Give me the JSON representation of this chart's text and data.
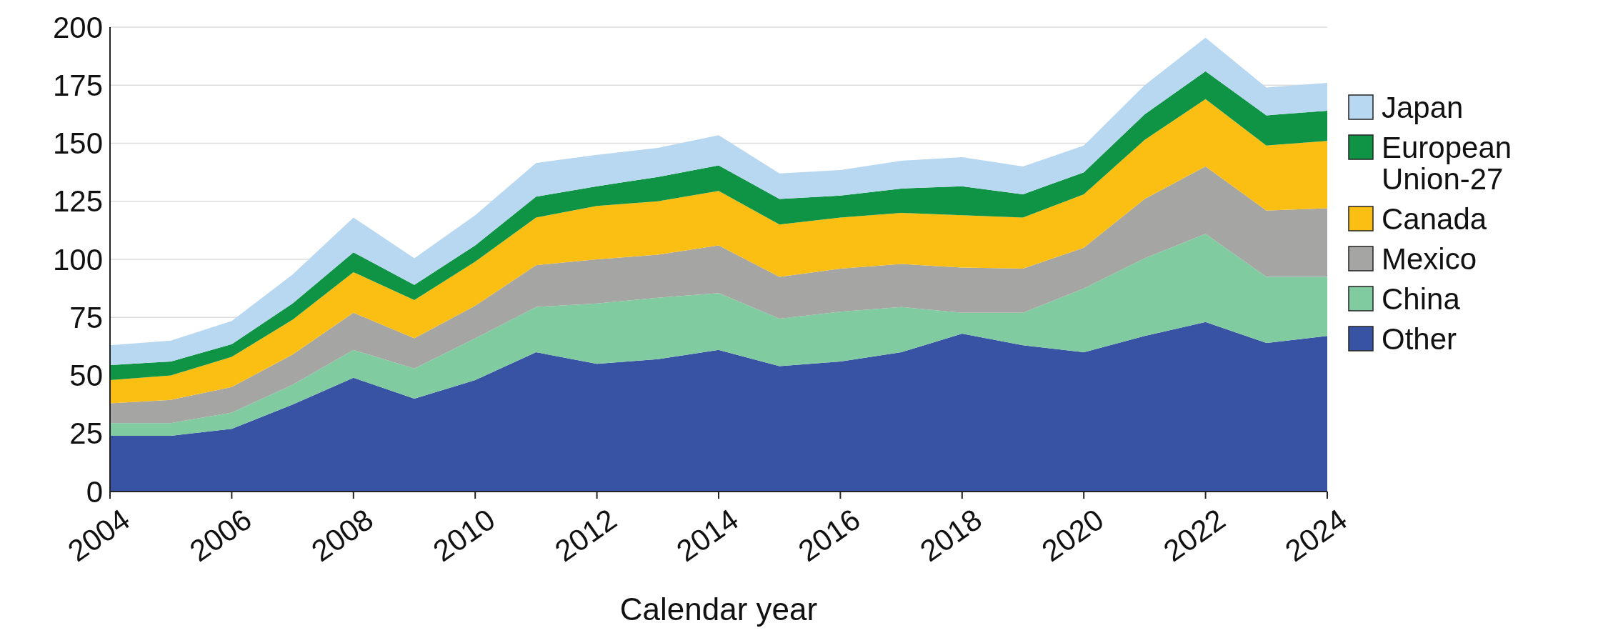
{
  "chart_data": {
    "type": "area",
    "stacked": true,
    "xlabel": "Calendar year",
    "x": [
      2004,
      2005,
      2006,
      2007,
      2008,
      2009,
      2010,
      2011,
      2012,
      2013,
      2014,
      2015,
      2016,
      2017,
      2018,
      2019,
      2020,
      2021,
      2022,
      2023,
      2024
    ],
    "xlim": [
      2004,
      2024
    ],
    "xticks": [
      2004,
      2006,
      2008,
      2010,
      2012,
      2014,
      2016,
      2018,
      2020,
      2022,
      2024
    ],
    "ylim": [
      0,
      200
    ],
    "yticks": [
      0,
      25,
      50,
      75,
      100,
      125,
      150,
      175,
      200
    ],
    "grid": "y",
    "legend": "right",
    "series": [
      {
        "name": "Other",
        "color": "#3953a4",
        "values": [
          24,
          24,
          27,
          37.5,
          49,
          40,
          48,
          60,
          55,
          57,
          61,
          54,
          56,
          60,
          68,
          63,
          60,
          67,
          73,
          64,
          67
        ]
      },
      {
        "name": "China",
        "color": "#80cba0",
        "values": [
          5.5,
          5.5,
          7,
          8.5,
          12,
          13,
          18,
          19.5,
          26,
          26.5,
          24.5,
          20.5,
          21.5,
          19.5,
          9,
          14,
          27.5,
          33.5,
          38,
          28.5,
          25.5
        ]
      },
      {
        "name": "Mexico",
        "color": "#a5a5a3",
        "values": [
          8.5,
          10,
          11,
          13,
          16,
          13,
          14,
          18,
          19,
          18.5,
          20.5,
          18,
          18.5,
          18.5,
          19.5,
          19,
          17.5,
          25.5,
          29,
          28.5,
          29.5
        ]
      },
      {
        "name": "Canada",
        "color": "#fbbf14",
        "values": [
          10,
          10.5,
          13,
          15,
          17.5,
          16.5,
          19,
          20.5,
          23,
          23,
          23.5,
          22.5,
          22,
          22,
          22.5,
          22,
          23,
          25.5,
          29,
          28,
          29
        ]
      },
      {
        "name": "European Union-27",
        "color": "#0e9444",
        "values": [
          6.5,
          6,
          5.5,
          7,
          8.5,
          6.5,
          7,
          9,
          8.5,
          10.5,
          11,
          11,
          9.5,
          10.5,
          12.5,
          10,
          9.5,
          11,
          12,
          13,
          13
        ]
      },
      {
        "name": "Japan",
        "color": "#b8d8f2",
        "values": [
          8.5,
          9,
          10,
          12.5,
          15,
          11.5,
          13,
          14.5,
          13.5,
          12.5,
          13,
          11,
          11,
          12,
          12.5,
          12,
          11.5,
          12.5,
          14.5,
          12,
          12
        ]
      }
    ]
  }
}
